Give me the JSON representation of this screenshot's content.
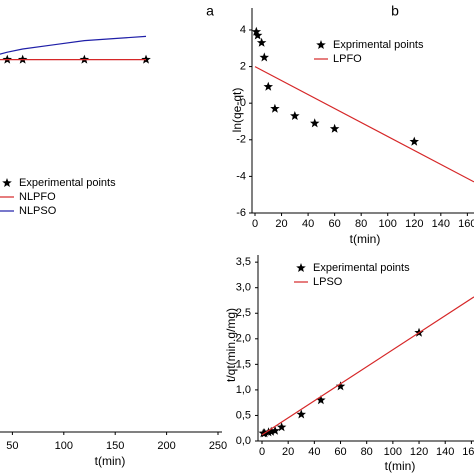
{
  "chart_data": [
    {
      "type": "line",
      "title": "a",
      "xlabel": "t(min)",
      "xlim": [
        0,
        250
      ],
      "xticks": [
        50,
        100,
        150,
        200,
        250
      ],
      "ylim": [
        0,
        40
      ],
      "series": [
        {
          "name": "Experimental points",
          "style": "marker",
          "color": "#000000",
          "x": [
            45,
            60,
            120,
            180
          ],
          "values": [
            35.3,
            35.3,
            35.3,
            35.3
          ]
        },
        {
          "name": "NLPFO",
          "style": "line",
          "color": "#d62728",
          "x": [
            0,
            180
          ],
          "values": [
            35.3,
            35.3
          ]
        },
        {
          "name": "NLPSO",
          "style": "line",
          "color": "#1f1fa8",
          "x": [
            30,
            45,
            60,
            90,
            120,
            150,
            180
          ],
          "values": [
            35.6,
            36.0,
            36.3,
            36.7,
            37.1,
            37.3,
            37.5
          ]
        }
      ]
    },
    {
      "type": "line",
      "title": "b",
      "xlabel": "t(min)",
      "ylabel": "ln(qe-qt)",
      "xlim": [
        0,
        165
      ],
      "xticks": [
        0,
        20,
        40,
        60,
        80,
        100,
        120,
        140,
        160
      ],
      "ylim": [
        -6,
        5.2
      ],
      "yticks": [
        -6,
        -4,
        -2,
        0,
        2,
        4
      ],
      "series": [
        {
          "name": "Exprimental points",
          "style": "marker",
          "color": "#000000",
          "x": [
            1,
            2,
            5,
            7,
            10,
            15,
            30,
            45,
            60,
            120
          ],
          "values": [
            3.9,
            3.7,
            3.3,
            2.5,
            0.9,
            -0.3,
            -0.7,
            -1.1,
            -1.4,
            -2.1
          ]
        },
        {
          "name": "LPFO",
          "style": "line",
          "color": "#d62728",
          "x": [
            0,
            165
          ],
          "values": [
            2.0,
            -4.3
          ]
        }
      ]
    },
    {
      "type": "line",
      "xlabel": "t(min)",
      "ylabel": "t/qt(min.g/mg)",
      "xlim": [
        0,
        162
      ],
      "xticks": [
        0,
        20,
        40,
        60,
        80,
        100,
        120,
        140,
        160
      ],
      "ylim": [
        0,
        3.64
      ],
      "yticks": [
        {
          "value": 0,
          "label": "0,0"
        },
        {
          "value": 0.5,
          "label": "0,5"
        },
        {
          "value": 1,
          "label": "1,0"
        },
        {
          "value": 1.5,
          "label": "1,5"
        },
        {
          "value": 2,
          "label": "2,0"
        },
        {
          "value": 2.5,
          "label": "2,5"
        },
        {
          "value": 3,
          "label": "3,0"
        },
        {
          "value": 3.5,
          "label": "3,5"
        }
      ],
      "series": [
        {
          "name": "Experimental points",
          "style": "marker",
          "color": "#000000",
          "x": [
            1,
            2,
            5,
            7,
            10,
            15,
            30,
            45,
            60,
            120
          ],
          "values": [
            0.15,
            0.15,
            0.17,
            0.18,
            0.2,
            0.27,
            0.52,
            0.8,
            1.07,
            2.12
          ]
        },
        {
          "name": "LPSO",
          "style": "line",
          "color": "#d62728",
          "x": [
            0,
            162
          ],
          "values": [
            0.12,
            2.82
          ]
        }
      ]
    }
  ]
}
